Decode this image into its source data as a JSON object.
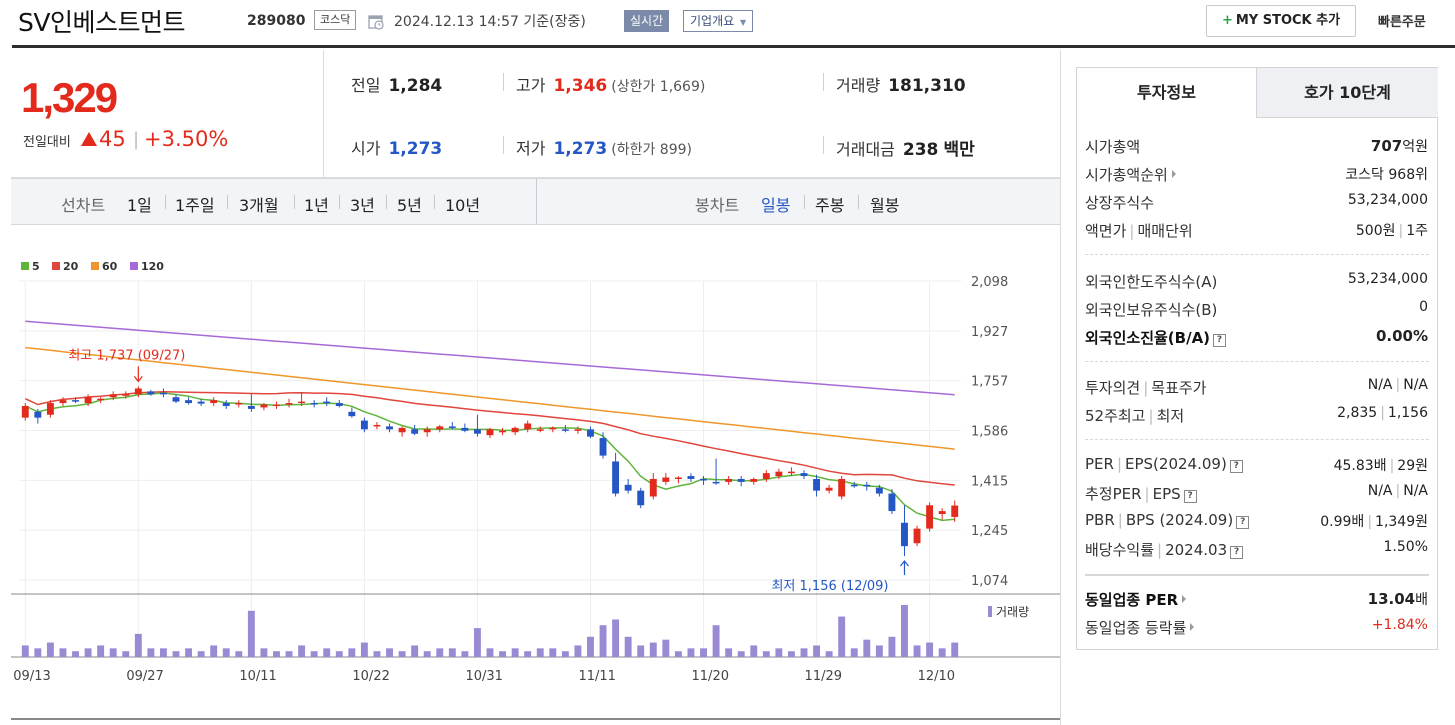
{
  "header": {
    "stock_name": "SV인베스트먼트",
    "stock_code": "289080",
    "market": "코스닥",
    "date": "2024.12.13 14:57 기준(장중)",
    "realtime_label": "실시간",
    "company_label": "기업개요",
    "mystock_label": "MY STOCK 추가",
    "quick_order_label": "빠른주문"
  },
  "summary": {
    "price": "1,329",
    "change_label": "전일대비",
    "change_value": "45",
    "change_rate": "+3.50%",
    "prev_close_label": "전일",
    "prev_close": "1,284",
    "open_label": "시가",
    "open": "1,273",
    "high_label": "고가",
    "high": "1,346",
    "upper_limit_text": "(상한가 1,669)",
    "low_label": "저가",
    "low": "1,273",
    "lower_limit_text": "(하한가 899)",
    "volume_label": "거래량",
    "volume": "181,310",
    "value_label": "거래대금",
    "value": "238",
    "value_unit": "백만"
  },
  "period_bar": {
    "line_chart_label": "선차트",
    "periods": [
      "1일",
      "1주일",
      "3개월",
      "1년",
      "3년",
      "5년",
      "10년"
    ],
    "candle_chart_label": "봉차트",
    "candle_periods": [
      "일봉",
      "주봉",
      "월봉"
    ],
    "active_candle": "일봉"
  },
  "colors": {
    "up": "#e22b1c",
    "down": "#2457c5",
    "ma5": "#5fb53b",
    "ma20": "#e0463c",
    "ma60": "#f0962a",
    "ma120": "#a56ad8",
    "volume": "#9a8ad4"
  },
  "chart_data": {
    "type": "candlestick",
    "legend": [
      "5",
      "20",
      "60",
      "120"
    ],
    "y_ticks": [
      2098,
      1927,
      1757,
      1586,
      1415,
      1245,
      1074
    ],
    "ylim": [
      1074,
      2098
    ],
    "x_tick_labels": [
      "09/13",
      "09/27",
      "10/11",
      "10/22",
      "10/31",
      "11/11",
      "11/20",
      "11/29",
      "12/10"
    ],
    "x_tick_index": [
      0,
      9,
      18,
      27,
      36,
      45,
      54,
      63,
      72
    ],
    "volume_label": "거래량",
    "annotations": {
      "high_label": "최고 1,737 (09/27)",
      "high_index": 9,
      "high_value": 1737,
      "low_label": "최저 1,156 (12/09)",
      "low_index": 70,
      "low_value": 1156
    },
    "candles": [
      [
        1630,
        1680,
        1620,
        1670
      ],
      [
        1650,
        1660,
        1610,
        1630
      ],
      [
        1640,
        1690,
        1630,
        1680
      ],
      [
        1680,
        1700,
        1670,
        1690
      ],
      [
        1690,
        1700,
        1680,
        1685
      ],
      [
        1680,
        1710,
        1670,
        1700
      ],
      [
        1690,
        1700,
        1680,
        1695
      ],
      [
        1700,
        1720,
        1690,
        1710
      ],
      [
        1705,
        1720,
        1695,
        1710
      ],
      [
        1710,
        1737,
        1700,
        1730
      ],
      [
        1720,
        1725,
        1705,
        1710
      ],
      [
        1715,
        1730,
        1700,
        1712
      ],
      [
        1700,
        1710,
        1680,
        1685
      ],
      [
        1690,
        1700,
        1675,
        1680
      ],
      [
        1685,
        1695,
        1670,
        1678
      ],
      [
        1680,
        1700,
        1670,
        1690
      ],
      [
        1680,
        1690,
        1660,
        1670
      ],
      [
        1675,
        1690,
        1665,
        1680
      ],
      [
        1670,
        1710,
        1650,
        1660
      ],
      [
        1665,
        1680,
        1655,
        1675
      ],
      [
        1670,
        1685,
        1660,
        1675
      ],
      [
        1675,
        1695,
        1665,
        1680
      ],
      [
        1680,
        1715,
        1670,
        1685
      ],
      [
        1680,
        1690,
        1665,
        1675
      ],
      [
        1685,
        1700,
        1670,
        1680
      ],
      [
        1680,
        1690,
        1665,
        1670
      ],
      [
        1650,
        1665,
        1630,
        1635
      ],
      [
        1620,
        1630,
        1580,
        1590
      ],
      [
        1600,
        1615,
        1590,
        1605
      ],
      [
        1600,
        1610,
        1580,
        1590
      ],
      [
        1580,
        1600,
        1565,
        1595
      ],
      [
        1590,
        1605,
        1570,
        1575
      ],
      [
        1580,
        1600,
        1565,
        1590
      ],
      [
        1590,
        1605,
        1580,
        1600
      ],
      [
        1600,
        1615,
        1590,
        1598
      ],
      [
        1595,
        1610,
        1580,
        1585
      ],
      [
        1590,
        1640,
        1565,
        1575
      ],
      [
        1570,
        1595,
        1560,
        1590
      ],
      [
        1580,
        1595,
        1570,
        1585
      ],
      [
        1580,
        1600,
        1570,
        1595
      ],
      [
        1590,
        1620,
        1580,
        1610
      ],
      [
        1590,
        1600,
        1580,
        1590
      ],
      [
        1590,
        1600,
        1580,
        1595
      ],
      [
        1590,
        1605,
        1580,
        1585
      ],
      [
        1590,
        1600,
        1575,
        1590
      ],
      [
        1590,
        1600,
        1560,
        1565
      ],
      [
        1560,
        1580,
        1490,
        1500
      ],
      [
        1480,
        1510,
        1360,
        1370
      ],
      [
        1400,
        1420,
        1370,
        1380
      ],
      [
        1380,
        1390,
        1320,
        1330
      ],
      [
        1360,
        1440,
        1350,
        1420
      ],
      [
        1410,
        1440,
        1400,
        1425
      ],
      [
        1420,
        1430,
        1405,
        1425
      ],
      [
        1430,
        1440,
        1410,
        1420
      ],
      [
        1420,
        1430,
        1400,
        1415
      ],
      [
        1410,
        1490,
        1400,
        1405
      ],
      [
        1410,
        1430,
        1400,
        1420
      ],
      [
        1420,
        1430,
        1395,
        1410
      ],
      [
        1410,
        1425,
        1400,
        1420
      ],
      [
        1420,
        1450,
        1410,
        1440
      ],
      [
        1430,
        1455,
        1420,
        1445
      ],
      [
        1440,
        1460,
        1430,
        1445
      ],
      [
        1440,
        1450,
        1420,
        1430
      ],
      [
        1420,
        1435,
        1360,
        1380
      ],
      [
        1380,
        1400,
        1370,
        1390
      ],
      [
        1360,
        1430,
        1350,
        1420
      ],
      [
        1400,
        1410,
        1390,
        1395
      ],
      [
        1400,
        1410,
        1380,
        1395
      ],
      [
        1390,
        1400,
        1360,
        1370
      ],
      [
        1370,
        1385,
        1300,
        1310
      ],
      [
        1270,
        1330,
        1156,
        1190
      ],
      [
        1200,
        1260,
        1190,
        1250
      ],
      [
        1250,
        1340,
        1240,
        1330
      ],
      [
        1300,
        1320,
        1280,
        1310
      ],
      [
        1290,
        1346,
        1273,
        1329
      ]
    ],
    "volumes": [
      4,
      3,
      5,
      3,
      2,
      3,
      4,
      3,
      2,
      8,
      3,
      3,
      2,
      3,
      2,
      4,
      3,
      2,
      16,
      3,
      2,
      2,
      4,
      2,
      3,
      2,
      3,
      5,
      2,
      3,
      2,
      4,
      2,
      3,
      3,
      2,
      10,
      3,
      2,
      3,
      2,
      3,
      3,
      2,
      4,
      7,
      11,
      13,
      7,
      4,
      5,
      6,
      2,
      3,
      3,
      11,
      3,
      2,
      4,
      2,
      3,
      2,
      3,
      4,
      2,
      14,
      3,
      6,
      4,
      7,
      18,
      4,
      5,
      3,
      5
    ]
  },
  "panel": {
    "tab_invest": "투자정보",
    "tab_hoga": "호가 10단계",
    "rows1": [
      {
        "label": "시가총액",
        "value": "707",
        "unit": "억원"
      },
      {
        "label": "시가총액순위",
        "value": "코스닥 968위"
      },
      {
        "label": "상장주식수",
        "value": "53,234,000"
      },
      {
        "label": "액면가",
        "label2": "매매단위",
        "value": "500원",
        "value2": "1주"
      }
    ],
    "rows2": [
      {
        "label": "외국인한도주식수(A)",
        "value": "53,234,000"
      },
      {
        "label": "외국인보유주식수(B)",
        "value": "0"
      },
      {
        "label": "외국인소진율(B/A)",
        "value": "0.00%"
      }
    ],
    "rows3": [
      {
        "label": "투자의견",
        "label2": "목표주가",
        "value": "N/A",
        "value2": "N/A"
      },
      {
        "label": "52주최고",
        "label2": "최저",
        "value": "2,835",
        "value2": "1,156"
      }
    ],
    "rows4": [
      {
        "label": "PER",
        "label2": "EPS(2024.09)",
        "value": "45.83배",
        "value2": "29원"
      },
      {
        "label": "추정PER",
        "label2": "EPS",
        "value": "N/A",
        "value2": "N/A"
      },
      {
        "label": "PBR",
        "label2": "BPS (2024.09)",
        "value": "0.99배",
        "value2": "1,349원"
      },
      {
        "label": "배당수익률",
        "label2": "2024.03",
        "value": "1.50%"
      }
    ],
    "rows5": [
      {
        "label": "동일업종 PER",
        "value": "13.04",
        "unit": "배"
      },
      {
        "label": "동일업종 등락률",
        "value": "+1.84%"
      }
    ]
  }
}
